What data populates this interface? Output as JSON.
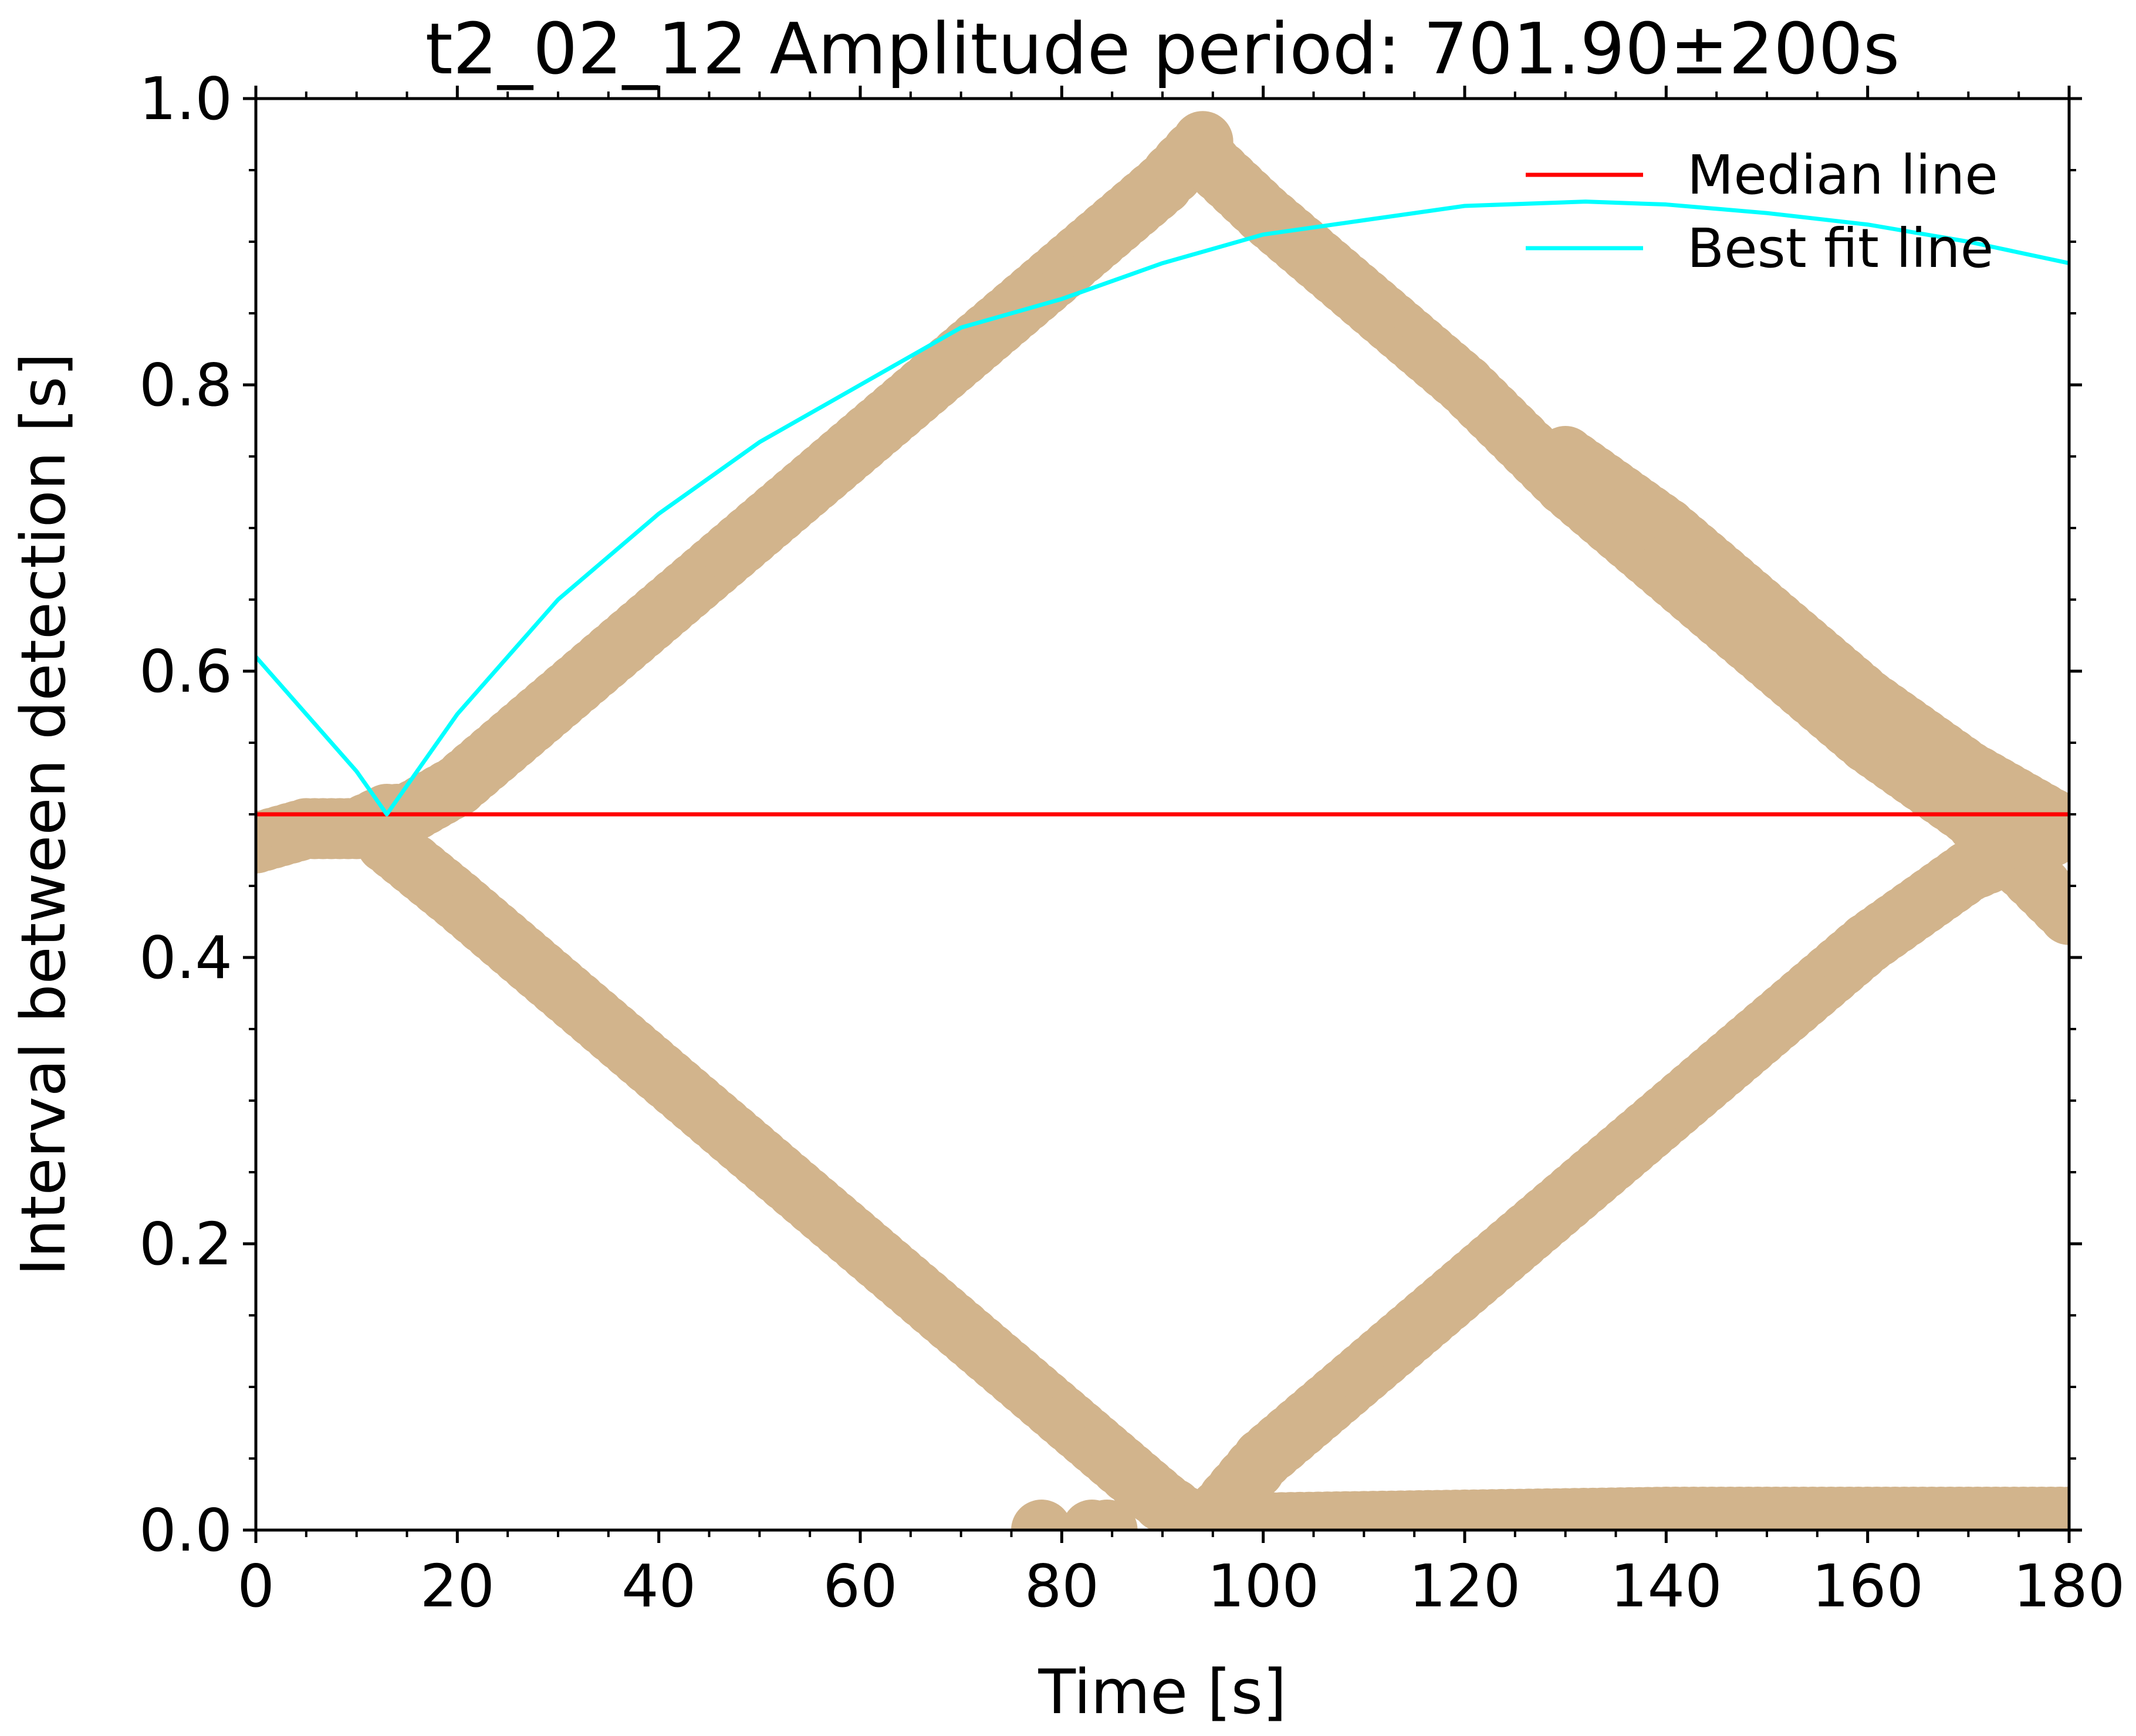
{
  "chart_data": {
    "type": "scatter",
    "title": "t2_02_12 Amplitude period: 701.90±200s",
    "xlabel": "Time [s]",
    "ylabel": "Interval between detection [s]",
    "xlim": [
      0,
      180
    ],
    "ylim": [
      0,
      1.0
    ],
    "x_ticks": [
      "0",
      "20",
      "40",
      "60",
      "80",
      "100",
      "120",
      "140",
      "160",
      "180"
    ],
    "y_ticks": [
      "0.0",
      "0.2",
      "0.4",
      "0.6",
      "0.8",
      "1.0"
    ],
    "x_tick_values": [
      0,
      20,
      40,
      60,
      80,
      100,
      120,
      140,
      160,
      180
    ],
    "y_tick_values": [
      0.0,
      0.2,
      0.4,
      0.6,
      0.8,
      1.0
    ],
    "grid": false,
    "legend_position": "top-right",
    "series": [
      {
        "kind": "scatter",
        "color": "#d2b48c",
        "segments": [
          {
            "x": [
              0,
              5,
              10,
              13,
              15,
              20,
              30,
              40,
              50,
              60,
              70,
              80,
              90,
              94
            ],
            "y": [
              0.48,
              0.49,
              0.49,
              0.5,
              0.5,
              0.52,
              0.58,
              0.64,
              0.7,
              0.76,
              0.82,
              0.88,
              0.94,
              0.97
            ]
          },
          {
            "x": [
              94,
              100,
              110,
              120,
              130,
              140,
              150,
              160,
              170,
              180
            ],
            "y": [
              0.96,
              0.92,
              0.86,
              0.8,
              0.73,
              0.67,
              0.61,
              0.55,
              0.5,
              0.43
            ]
          },
          {
            "x": [
              130,
              140,
              150,
              160,
              170,
              180
            ],
            "y": [
              0.75,
              0.7,
              0.64,
              0.58,
              0.53,
              0.49
            ]
          },
          {
            "x": [
              13,
              20,
              30,
              40,
              50,
              60,
              70,
              80,
              85,
              90,
              94
            ],
            "y": [
              0.48,
              0.44,
              0.38,
              0.32,
              0.26,
              0.2,
              0.14,
              0.08,
              0.05,
              0.02,
              0.0
            ]
          },
          {
            "x": [
              94,
              100,
              110,
              120,
              130,
              140,
              150,
              160,
              170,
              180
            ],
            "y": [
              0.0,
              0.05,
              0.11,
              0.17,
              0.23,
              0.29,
              0.35,
              0.41,
              0.46,
              0.49
            ]
          },
          {
            "x": [
              100,
              110,
              120,
              130,
              140,
              150,
              160,
              170,
              180
            ],
            "y": [
              0.005,
              0.006,
              0.007,
              0.008,
              0.009,
              0.009,
              0.009,
              0.009,
              0.009
            ]
          },
          {
            "x": [
              78,
              83,
              84.5
            ],
            "y": [
              0.0,
              0.0,
              0.0
            ]
          }
        ]
      },
      {
        "kind": "line",
        "name": "Median line",
        "color": "#ff0000",
        "x": [
          0,
          180
        ],
        "y": [
          0.5,
          0.5
        ]
      },
      {
        "kind": "line",
        "name": "Best fit line",
        "color": "#00ffff",
        "x": [
          0,
          5,
          10,
          13,
          20,
          30,
          40,
          50,
          60,
          70,
          80,
          90,
          100,
          110,
          120,
          132,
          140,
          150,
          160,
          170,
          180
        ],
        "y": [
          0.61,
          0.57,
          0.53,
          0.5,
          0.57,
          0.65,
          0.71,
          0.76,
          0.8,
          0.84,
          0.86,
          0.885,
          0.905,
          0.915,
          0.925,
          0.928,
          0.926,
          0.92,
          0.912,
          0.9,
          0.885
        ]
      }
    ]
  }
}
